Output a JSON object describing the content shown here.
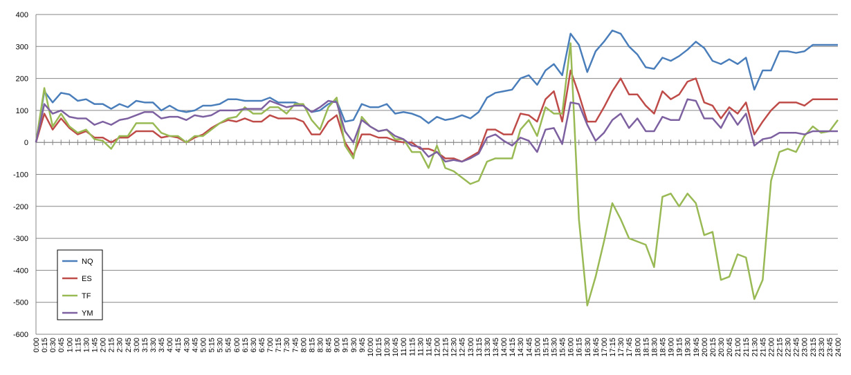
{
  "chart_data": {
    "type": "line",
    "categories": [
      "0:00",
      "0:15",
      "0:30",
      "0:45",
      "1:00",
      "1:15",
      "1:30",
      "1:45",
      "2:00",
      "2:15",
      "2:30",
      "2:45",
      "3:00",
      "3:15",
      "3:30",
      "3:45",
      "4:00",
      "4:15",
      "4:30",
      "4:45",
      "5:00",
      "5:15",
      "5:30",
      "5:45",
      "6:00",
      "6:15",
      "6:30",
      "6:45",
      "7:00",
      "7:15",
      "7:30",
      "7:45",
      "8:00",
      "8:15",
      "8:30",
      "8:45",
      "9:00",
      "9:15",
      "9:30",
      "9:45",
      "10:00",
      "10:15",
      "10:30",
      "10:45",
      "11:00",
      "11:15",
      "11:30",
      "11:45",
      "12:00",
      "12:15",
      "12:30",
      "12:45",
      "13:00",
      "13:15",
      "13:30",
      "13:45",
      "14:00",
      "14:15",
      "14:30",
      "14:45",
      "15:00",
      "15:15",
      "15:30",
      "15:45",
      "16:00",
      "16:15",
      "16:30",
      "16:45",
      "17:00",
      "17:15",
      "17:30",
      "17:45",
      "18:00",
      "18:15",
      "18:30",
      "18:45",
      "19:00",
      "19:15",
      "19:30",
      "19:45",
      "20:00",
      "20:15",
      "20:30",
      "20:45",
      "21:00",
      "21:15",
      "21:30",
      "21:45",
      "22:00",
      "22:15",
      "22:30",
      "22:45",
      "23:00",
      "23:15",
      "23:30",
      "23:45",
      "24:00"
    ],
    "series": [
      {
        "name": "NQ",
        "color": "#4a7ebb",
        "values": [
          0,
          160,
          125,
          155,
          150,
          130,
          135,
          120,
          120,
          105,
          120,
          110,
          130,
          125,
          125,
          100,
          115,
          100,
          95,
          100,
          115,
          115,
          120,
          135,
          135,
          130,
          130,
          130,
          140,
          125,
          125,
          125,
          115,
          95,
          100,
          120,
          130,
          65,
          70,
          120,
          110,
          110,
          120,
          90,
          95,
          90,
          80,
          60,
          80,
          70,
          75,
          85,
          75,
          95,
          140,
          155,
          160,
          165,
          200,
          210,
          180,
          225,
          245,
          210,
          340,
          305,
          220,
          285,
          315,
          350,
          340,
          300,
          275,
          235,
          230,
          265,
          255,
          270,
          290,
          315,
          295,
          255,
          245,
          260,
          245,
          265,
          165,
          225,
          225,
          285,
          285,
          280,
          285,
          305,
          305,
          305,
          305
        ]
      },
      {
        "name": "ES",
        "color": "#be4b48",
        "values": [
          0,
          90,
          40,
          75,
          45,
          25,
          35,
          15,
          15,
          0,
          15,
          15,
          35,
          35,
          35,
          15,
          20,
          15,
          0,
          15,
          25,
          45,
          60,
          70,
          65,
          75,
          65,
          65,
          85,
          75,
          75,
          75,
          65,
          25,
          25,
          65,
          85,
          0,
          -40,
          25,
          25,
          15,
          15,
          5,
          0,
          0,
          -20,
          -20,
          -30,
          -50,
          -50,
          -60,
          -45,
          -30,
          40,
          40,
          25,
          25,
          90,
          85,
          65,
          135,
          160,
          65,
          225,
          150,
          65,
          65,
          110,
          160,
          200,
          150,
          150,
          115,
          90,
          160,
          135,
          150,
          190,
          200,
          125,
          115,
          75,
          110,
          90,
          125,
          25,
          65,
          100,
          125,
          125,
          125,
          115,
          135,
          135,
          135,
          135
        ]
      },
      {
        "name": "TF",
        "color": "#98b954",
        "values": [
          0,
          170,
          50,
          90,
          50,
          30,
          40,
          10,
          5,
          -20,
          20,
          20,
          60,
          60,
          60,
          30,
          20,
          20,
          0,
          20,
          20,
          40,
          60,
          75,
          80,
          110,
          90,
          90,
          110,
          110,
          90,
          120,
          120,
          70,
          40,
          110,
          140,
          -10,
          -50,
          80,
          50,
          35,
          40,
          10,
          10,
          -30,
          -30,
          -80,
          -10,
          -80,
          -90,
          -110,
          -130,
          -120,
          -60,
          -50,
          -50,
          -50,
          40,
          70,
          20,
          110,
          90,
          90,
          310,
          -240,
          -510,
          -420,
          -310,
          -190,
          -240,
          -300,
          -310,
          -320,
          -390,
          -170,
          -160,
          -200,
          -160,
          -190,
          -290,
          -280,
          -430,
          -420,
          -350,
          -360,
          -490,
          -430,
          -120,
          -30,
          -20,
          -30,
          20,
          50,
          30,
          35,
          70
        ]
      },
      {
        "name": "YM",
        "color": "#7d60a0",
        "values": [
          0,
          120,
          90,
          100,
          80,
          75,
          75,
          55,
          65,
          55,
          70,
          75,
          85,
          95,
          95,
          75,
          80,
          80,
          70,
          85,
          80,
          85,
          100,
          100,
          100,
          105,
          105,
          105,
          130,
          120,
          110,
          115,
          115,
          95,
          110,
          130,
          125,
          35,
          0,
          70,
          50,
          35,
          40,
          20,
          10,
          -10,
          -15,
          -45,
          -30,
          -60,
          -55,
          -60,
          -50,
          -35,
          15,
          25,
          5,
          -10,
          15,
          5,
          -30,
          40,
          45,
          -5,
          125,
          120,
          55,
          5,
          30,
          70,
          90,
          45,
          75,
          35,
          35,
          80,
          70,
          70,
          135,
          130,
          75,
          75,
          45,
          95,
          55,
          90,
          -10,
          10,
          15,
          30,
          30,
          30,
          25,
          35,
          35,
          35,
          35
        ]
      }
    ],
    "ylim": [
      -600,
      400
    ],
    "yticks": [
      -600,
      -500,
      -400,
      -300,
      -200,
      -100,
      0,
      100,
      200,
      300,
      400
    ],
    "grid": true,
    "legend": "lower left"
  }
}
